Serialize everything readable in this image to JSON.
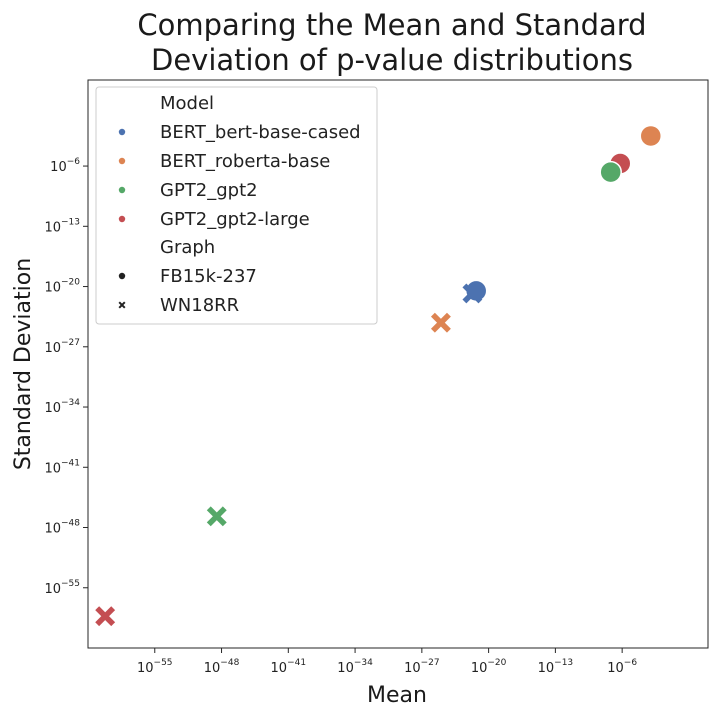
{
  "chart_data": {
    "type": "scatter",
    "title_lines": [
      "Comparing the Mean and Standard",
      "Deviation of p-value distributions"
    ],
    "xlabel": "Mean",
    "ylabel": "Standard Deviation",
    "xscale": "log",
    "yscale": "log",
    "xlim_exp": [
      -62,
      3
    ],
    "ylim_exp": [
      -62,
      4
    ],
    "xticks": [
      {
        "base": "10",
        "exp": "−55",
        "value_exp": -55
      },
      {
        "base": "10",
        "exp": "−48",
        "value_exp": -48
      },
      {
        "base": "10",
        "exp": "−41",
        "value_exp": -41
      },
      {
        "base": "10",
        "exp": "−34",
        "value_exp": -34
      },
      {
        "base": "10",
        "exp": "−27",
        "value_exp": -27
      },
      {
        "base": "10",
        "exp": "−20",
        "value_exp": -20
      },
      {
        "base": "10",
        "exp": "−13",
        "value_exp": -13
      },
      {
        "base": "10",
        "exp": "−6",
        "value_exp": -6
      }
    ],
    "yticks": [
      {
        "base": "10",
        "exp": "−6",
        "value_exp": -6
      },
      {
        "base": "10",
        "exp": "−13",
        "value_exp": -13
      },
      {
        "base": "10",
        "exp": "−20",
        "value_exp": -20
      },
      {
        "base": "10",
        "exp": "−27",
        "value_exp": -27
      },
      {
        "base": "10",
        "exp": "−34",
        "value_exp": -34
      },
      {
        "base": "10",
        "exp": "−41",
        "value_exp": -41
      },
      {
        "base": "10",
        "exp": "−48",
        "value_exp": -48
      },
      {
        "base": "10",
        "exp": "−55",
        "value_exp": -55
      }
    ],
    "grid": false,
    "legend_position": "upper-left",
    "legend": {
      "hue_title": "Model",
      "hue_entries": [
        {
          "name": "BERT_bert-base-cased",
          "color": "#4c72b0"
        },
        {
          "name": "BERT_roberta-base",
          "color": "#dd8452"
        },
        {
          "name": "GPT2_gpt2",
          "color": "#55a868"
        },
        {
          "name": "GPT2_gpt2-large",
          "color": "#c44e52"
        }
      ],
      "style_title": "Graph",
      "style_entries": [
        {
          "name": "FB15k-237",
          "marker": "circle"
        },
        {
          "name": "WN18RR",
          "marker": "x"
        }
      ]
    },
    "points": [
      {
        "model": "BERT_roberta-base",
        "graph": "FB15k-237",
        "mean_exp": -3.0,
        "std_exp": -2.5
      },
      {
        "model": "GPT2_gpt2-large",
        "graph": "FB15k-237",
        "mean_exp": -6.2,
        "std_exp": -5.7
      },
      {
        "model": "GPT2_gpt2",
        "graph": "FB15k-237",
        "mean_exp": -7.2,
        "std_exp": -6.7
      },
      {
        "model": "BERT_bert-base-cased",
        "graph": "FB15k-237",
        "mean_exp": -21.3,
        "std_exp": -20.5
      },
      {
        "model": "BERT_bert-base-cased",
        "graph": "WN18RR",
        "mean_exp": -21.7,
        "std_exp": -20.8
      },
      {
        "model": "BERT_roberta-base",
        "graph": "WN18RR",
        "mean_exp": -25.0,
        "std_exp": -24.2
      },
      {
        "model": "GPT2_gpt2",
        "graph": "WN18RR",
        "mean_exp": -48.5,
        "std_exp": -46.7
      },
      {
        "model": "GPT2_gpt2-large",
        "graph": "WN18RR",
        "mean_exp": -60.2,
        "std_exp": -58.3
      }
    ]
  }
}
